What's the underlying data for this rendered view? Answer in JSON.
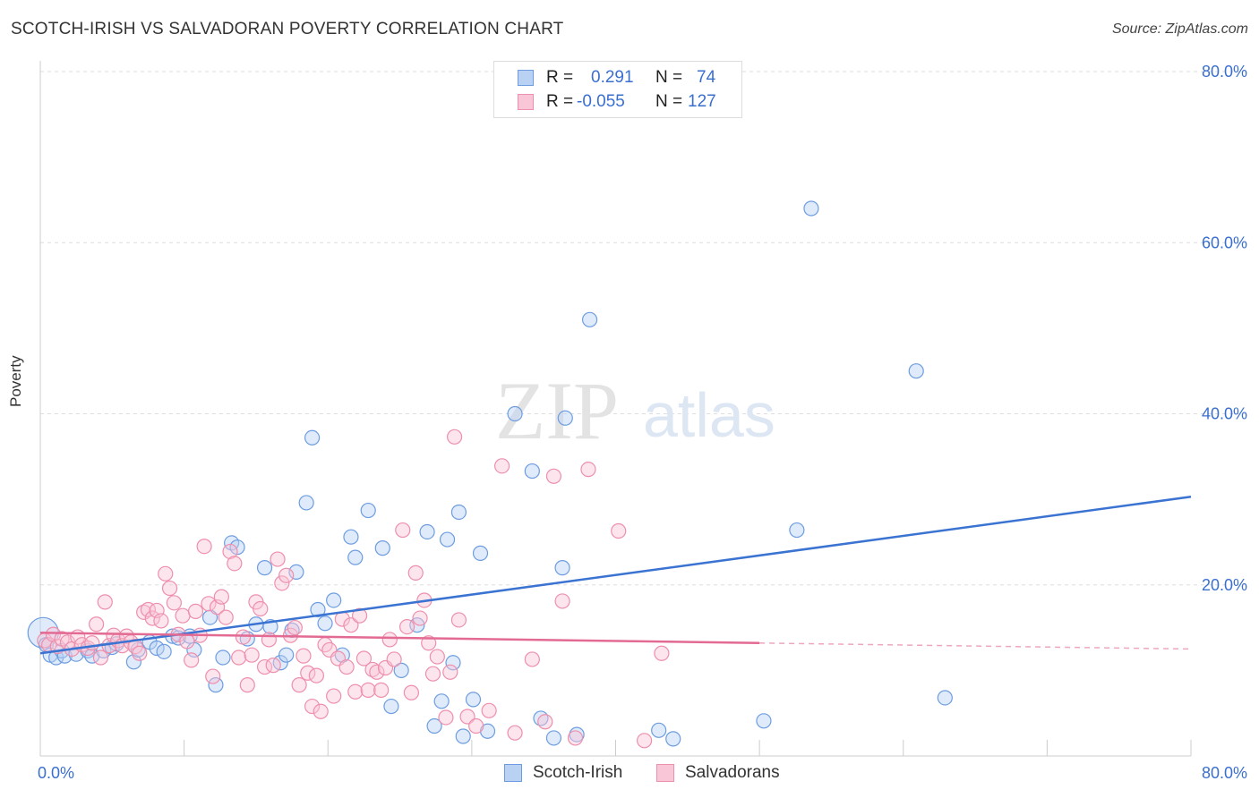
{
  "title": "SCOTCH-IRISH VS SALVADORAN POVERTY CORRELATION CHART",
  "source": "Source: ZipAtlas.com",
  "watermark": {
    "zip": "ZIP",
    "atlas": "atlas"
  },
  "stats": {
    "r_label": "R =",
    "n_label": "N =",
    "rows": [
      {
        "r": "0.291",
        "n": "74",
        "color": "#6d9de0",
        "fill": "#b9d1f3"
      },
      {
        "r": "-0.055",
        "n": "127",
        "color": "#ee8fac",
        "fill": "#f8c6d6"
      }
    ]
  },
  "legend": [
    {
      "label": "Scotch-Irish",
      "color": "#6d9de0",
      "fill": "#b9d1f3"
    },
    {
      "label": "Salvadorans",
      "color": "#ee8fac",
      "fill": "#f8c6d6"
    }
  ],
  "chart_data": {
    "type": "scatter",
    "xlabel": "",
    "ylabel": "Poverty",
    "xlim": [
      0,
      80
    ],
    "ylim": [
      0,
      80
    ],
    "x_tick_labels": [
      "0.0%",
      "80.0%"
    ],
    "y_tick_labels": [
      "20.0%",
      "40.0%",
      "60.0%",
      "80.0%"
    ],
    "y_ticks": [
      20,
      40,
      60,
      80
    ],
    "grid": true,
    "legend_position": "bottom-center",
    "series": [
      {
        "name": "Scotch-Irish",
        "color": "#3a73d1",
        "fill": "#b9d1f3",
        "edge": "#6d9de0",
        "trend": {
          "x": [
            0,
            80
          ],
          "y": [
            12.0,
            30.3
          ]
        },
        "points": [
          [
            0.2,
            14.4
          ],
          [
            0.4,
            13.0
          ],
          [
            0.7,
            11.8
          ],
          [
            1.1,
            11.5
          ],
          [
            1.5,
            12.3
          ],
          [
            1.7,
            11.7
          ],
          [
            2.5,
            11.9
          ],
          [
            3.3,
            12.3
          ],
          [
            3.6,
            11.7
          ],
          [
            4.4,
            12.3
          ],
          [
            5.0,
            12.7
          ],
          [
            5.3,
            13.1
          ],
          [
            6.5,
            11.0
          ],
          [
            6.8,
            12.4
          ],
          [
            7.6,
            13.3
          ],
          [
            8.1,
            12.6
          ],
          [
            8.6,
            12.2
          ],
          [
            9.2,
            14.0
          ],
          [
            9.6,
            13.8
          ],
          [
            10.4,
            14.0
          ],
          [
            10.7,
            12.4
          ],
          [
            11.8,
            16.2
          ],
          [
            12.2,
            8.3
          ],
          [
            12.7,
            11.5
          ],
          [
            13.3,
            24.9
          ],
          [
            13.7,
            24.4
          ],
          [
            14.4,
            13.7
          ],
          [
            15.0,
            15.4
          ],
          [
            15.6,
            22.0
          ],
          [
            16.0,
            15.1
          ],
          [
            16.7,
            10.9
          ],
          [
            17.1,
            11.8
          ],
          [
            17.5,
            14.7
          ],
          [
            17.8,
            21.5
          ],
          [
            18.5,
            29.6
          ],
          [
            18.9,
            37.2
          ],
          [
            19.3,
            17.1
          ],
          [
            19.8,
            15.5
          ],
          [
            20.4,
            18.2
          ],
          [
            21.0,
            11.8
          ],
          [
            21.6,
            25.6
          ],
          [
            21.9,
            23.2
          ],
          [
            22.8,
            28.7
          ],
          [
            23.8,
            24.3
          ],
          [
            24.4,
            5.8
          ],
          [
            25.1,
            10.0
          ],
          [
            26.2,
            15.3
          ],
          [
            26.9,
            26.2
          ],
          [
            27.4,
            3.5
          ],
          [
            27.9,
            6.4
          ],
          [
            28.3,
            25.3
          ],
          [
            28.7,
            10.9
          ],
          [
            29.1,
            28.5
          ],
          [
            29.4,
            2.3
          ],
          [
            30.1,
            6.6
          ],
          [
            30.6,
            23.7
          ],
          [
            31.1,
            2.9
          ],
          [
            33.0,
            40.0
          ],
          [
            34.2,
            33.3
          ],
          [
            34.8,
            4.4
          ],
          [
            35.7,
            2.1
          ],
          [
            36.3,
            22.0
          ],
          [
            36.5,
            39.5
          ],
          [
            37.3,
            2.5
          ],
          [
            38.2,
            51.0
          ],
          [
            43.0,
            3.0
          ],
          [
            44.0,
            2.0
          ],
          [
            50.3,
            4.1
          ],
          [
            52.6,
            26.4
          ],
          [
            53.6,
            64.0
          ],
          [
            60.9,
            45.0
          ],
          [
            62.9,
            6.8
          ]
        ]
      },
      {
        "name": "Salvadorans",
        "color": "#e36a93",
        "fill": "#f8c6d6",
        "edge": "#ee8fac",
        "trend": {
          "x": [
            0,
            50
          ],
          "y": [
            14.4,
            13.2
          ],
          "dash_to": [
            80,
            12.5
          ]
        },
        "points": [
          [
            0.3,
            13.5
          ],
          [
            0.6,
            13.0
          ],
          [
            0.9,
            14.2
          ],
          [
            1.2,
            12.8
          ],
          [
            1.5,
            13.7
          ],
          [
            1.9,
            13.3
          ],
          [
            2.2,
            12.5
          ],
          [
            2.6,
            13.9
          ],
          [
            2.9,
            13.0
          ],
          [
            3.3,
            12.6
          ],
          [
            3.6,
            13.2
          ],
          [
            3.9,
            15.4
          ],
          [
            4.2,
            11.5
          ],
          [
            4.5,
            18.0
          ],
          [
            4.8,
            12.9
          ],
          [
            5.1,
            14.1
          ],
          [
            5.4,
            13.5
          ],
          [
            5.7,
            12.9
          ],
          [
            6.0,
            14.0
          ],
          [
            6.3,
            13.3
          ],
          [
            6.6,
            12.8
          ],
          [
            6.9,
            12.0
          ],
          [
            7.2,
            16.8
          ],
          [
            7.5,
            17.1
          ],
          [
            7.8,
            16.1
          ],
          [
            8.1,
            17.0
          ],
          [
            8.4,
            15.8
          ],
          [
            8.7,
            21.3
          ],
          [
            9.0,
            19.6
          ],
          [
            9.3,
            17.9
          ],
          [
            9.6,
            14.2
          ],
          [
            9.9,
            16.4
          ],
          [
            10.2,
            13.4
          ],
          [
            10.5,
            11.2
          ],
          [
            10.8,
            16.9
          ],
          [
            11.1,
            14.1
          ],
          [
            11.4,
            24.5
          ],
          [
            11.7,
            17.8
          ],
          [
            12.0,
            9.3
          ],
          [
            12.3,
            17.4
          ],
          [
            12.6,
            18.6
          ],
          [
            12.9,
            16.2
          ],
          [
            13.2,
            23.9
          ],
          [
            13.5,
            22.5
          ],
          [
            13.8,
            11.5
          ],
          [
            14.1,
            13.9
          ],
          [
            14.4,
            8.3
          ],
          [
            14.7,
            11.8
          ],
          [
            15.0,
            18.0
          ],
          [
            15.3,
            17.2
          ],
          [
            15.6,
            10.4
          ],
          [
            15.9,
            13.6
          ],
          [
            16.2,
            10.6
          ],
          [
            16.5,
            23.0
          ],
          [
            16.8,
            20.2
          ],
          [
            17.1,
            21.1
          ],
          [
            17.4,
            14.1
          ],
          [
            17.7,
            15.0
          ],
          [
            18.0,
            8.3
          ],
          [
            18.3,
            11.7
          ],
          [
            18.6,
            9.7
          ],
          [
            18.9,
            5.8
          ],
          [
            19.2,
            9.4
          ],
          [
            19.5,
            5.2
          ],
          [
            19.8,
            13.0
          ],
          [
            20.1,
            12.4
          ],
          [
            20.4,
            7.0
          ],
          [
            20.7,
            11.4
          ],
          [
            21.0,
            16.0
          ],
          [
            21.3,
            10.4
          ],
          [
            21.6,
            15.3
          ],
          [
            21.9,
            7.5
          ],
          [
            22.2,
            16.4
          ],
          [
            22.5,
            11.4
          ],
          [
            22.8,
            7.7
          ],
          [
            23.1,
            10.1
          ],
          [
            23.4,
            9.8
          ],
          [
            23.7,
            7.7
          ],
          [
            24.0,
            10.3
          ],
          [
            24.3,
            13.6
          ],
          [
            24.6,
            11.3
          ],
          [
            25.2,
            26.4
          ],
          [
            25.5,
            15.1
          ],
          [
            25.8,
            7.4
          ],
          [
            26.1,
            21.4
          ],
          [
            26.4,
            16.1
          ],
          [
            26.7,
            18.2
          ],
          [
            27.0,
            13.2
          ],
          [
            27.3,
            9.6
          ],
          [
            27.6,
            11.6
          ],
          [
            28.2,
            4.5
          ],
          [
            28.5,
            9.8
          ],
          [
            28.8,
            37.3
          ],
          [
            29.1,
            15.9
          ],
          [
            29.7,
            4.6
          ],
          [
            30.3,
            3.5
          ],
          [
            31.2,
            5.3
          ],
          [
            32.1,
            33.9
          ],
          [
            33.0,
            2.7
          ],
          [
            34.2,
            11.3
          ],
          [
            35.1,
            4.0
          ],
          [
            35.7,
            32.7
          ],
          [
            36.3,
            18.1
          ],
          [
            37.2,
            2.1
          ],
          [
            38.1,
            33.5
          ],
          [
            40.2,
            26.3
          ],
          [
            42.0,
            1.8
          ],
          [
            43.2,
            12.0
          ]
        ]
      }
    ]
  }
}
